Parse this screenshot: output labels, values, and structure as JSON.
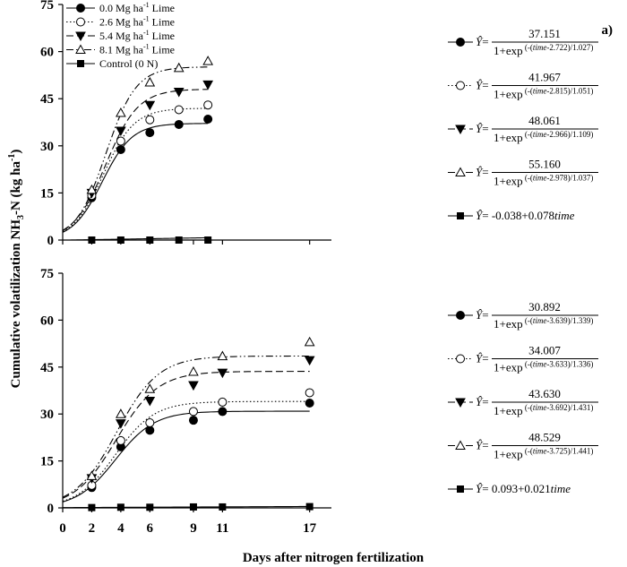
{
  "chart_data": {
    "type": "scatter",
    "xlabel": "Days after nitrogen fertilization",
    "ylabel_main": "Cumulative volatilization NH",
    "ylabel_sub": "3",
    "ylabel_tail": "-N (kg ha",
    "ylabel_sup": "-1",
    "ylabel_end": ")",
    "x_ticks": [
      "0",
      "2",
      "4",
      "6",
      "9",
      "11",
      "17"
    ],
    "x_tick_values": [
      0,
      2,
      4,
      6,
      9,
      11,
      17
    ],
    "y_ticks": [
      "0",
      "15",
      "30",
      "45",
      "60",
      "75"
    ],
    "y_tick_values": [
      0,
      15,
      30,
      45,
      60,
      75
    ],
    "xlim": [
      0,
      18.5
    ],
    "ylim": [
      0,
      75
    ],
    "legend": {
      "placement": "top-left",
      "entries": [
        {
          "text_main": "0.0 Mg ha",
          "text_sup": "-1",
          "text_tail": " Lime",
          "marker": "filled-circle",
          "line": "solid"
        },
        {
          "text_main": "2.6 Mg ha",
          "text_sup": "-1",
          "text_tail": " Lime",
          "marker": "open-circle",
          "line": "dotted"
        },
        {
          "text_main": "5.4 Mg ha",
          "text_sup": "-1",
          "text_tail": " Lime",
          "marker": "filled-triangle-down",
          "line": "dashed"
        },
        {
          "text_main": "8.1 Mg ha",
          "text_sup": "-1",
          "text_tail": " Lime",
          "marker": "open-triangle-up",
          "line": "dash-dot-dot"
        },
        {
          "text_main": "Control (0 N)",
          "text_sup": "",
          "text_tail": "",
          "marker": "filled-square",
          "line": "solid"
        }
      ]
    },
    "panels": [
      {
        "label": "a)",
        "series": [
          {
            "points": [
              [
                2,
                13.5
              ],
              [
                4,
                28.8
              ],
              [
                6,
                34.2
              ],
              [
                8,
                36.8
              ],
              [
                10,
                38.5
              ]
            ],
            "model": {
              "kind": "logistic",
              "a": 37.151,
              "b": 2.722,
              "c": 1.027
            },
            "equation": {
              "yhat": "Ŷ",
              "num": "37.151",
              "den_base": "1+exp",
              "den_exp_open": "(-(",
              "den_exp_var": "time",
              "den_exp_close": "-2.722)/1.027)"
            }
          },
          {
            "points": [
              [
                2,
                14.2
              ],
              [
                4,
                31.5
              ],
              [
                6,
                38.3
              ],
              [
                8,
                41.5
              ],
              [
                10,
                43.0
              ]
            ],
            "model": {
              "kind": "logistic",
              "a": 41.967,
              "b": 2.815,
              "c": 1.051
            },
            "equation": {
              "yhat": "Ŷ",
              "num": "41.967",
              "den_base": "1+exp",
              "den_exp_open": "(-(",
              "den_exp_var": "time",
              "den_exp_close": "-2.815)/1.051)"
            }
          },
          {
            "points": [
              [
                2,
                15.0
              ],
              [
                4,
                34.8
              ],
              [
                6,
                43.0
              ],
              [
                8,
                47.2
              ],
              [
                10,
                49.5
              ]
            ],
            "model": {
              "kind": "logistic",
              "a": 48.061,
              "b": 2.966,
              "c": 1.109
            },
            "equation": {
              "yhat": "Ŷ",
              "num": "48.061",
              "den_base": "1+exp",
              "den_exp_open": "(-(",
              "den_exp_var": "time",
              "den_exp_close": "-2.966)/1.109)"
            }
          },
          {
            "points": [
              [
                2,
                16.0
              ],
              [
                4,
                40.5
              ],
              [
                6,
                50.2
              ],
              [
                8,
                54.8
              ],
              [
                10,
                57.0
              ]
            ],
            "model": {
              "kind": "logistic",
              "a": 55.16,
              "b": 2.978,
              "c": 1.037
            },
            "equation": {
              "yhat": "Ŷ",
              "num": "55.160",
              "den_base": "1+exp",
              "den_exp_open": "(-(",
              "den_exp_var": "time",
              "den_exp_close": "-2.978)/1.037)"
            }
          },
          {
            "points": [
              [
                2,
                0.0
              ],
              [
                4,
                0.0
              ],
              [
                6,
                0.0
              ],
              [
                8,
                0.0
              ],
              [
                10,
                0.0
              ]
            ],
            "model": {
              "kind": "linear",
              "a": -0.038,
              "b": 0.078
            },
            "equation": {
              "yhat": "Ŷ",
              "linear_text": "= -0.038+0.078",
              "linear_var": "time"
            }
          }
        ]
      },
      {
        "label": "",
        "series": [
          {
            "points": [
              [
                2,
                6.5
              ],
              [
                4,
                19.5
              ],
              [
                6,
                24.8
              ],
              [
                9,
                28.0
              ],
              [
                11,
                30.8
              ],
              [
                17,
                33.5
              ]
            ],
            "model": {
              "kind": "logistic",
              "a": 30.892,
              "b": 3.639,
              "c": 1.339
            },
            "equation": {
              "yhat": "Ŷ",
              "num": "30.892",
              "den_base": "1+exp",
              "den_exp_open": "(-(",
              "den_exp_var": "time",
              "den_exp_close": "-3.639)/1.339)"
            }
          },
          {
            "points": [
              [
                2,
                7.2
              ],
              [
                4,
                21.5
              ],
              [
                6,
                27.2
              ],
              [
                9,
                30.8
              ],
              [
                11,
                33.8
              ],
              [
                17,
                36.8
              ]
            ],
            "model": {
              "kind": "logistic",
              "a": 34.007,
              "b": 3.633,
              "c": 1.336
            },
            "equation": {
              "yhat": "Ŷ",
              "num": "34.007",
              "den_base": "1+exp",
              "den_exp_open": "(-(",
              "den_exp_var": "time",
              "den_exp_close": "-3.633)/1.336)"
            }
          },
          {
            "points": [
              [
                2,
                9.5
              ],
              [
                4,
                27.0
              ],
              [
                6,
                34.2
              ],
              [
                9,
                39.2
              ],
              [
                11,
                43.2
              ],
              [
                17,
                47.2
              ]
            ],
            "model": {
              "kind": "logistic",
              "a": 43.63,
              "b": 3.692,
              "c": 1.431
            },
            "equation": {
              "yhat": "Ŷ",
              "num": "43.630",
              "den_base": "1+exp",
              "den_exp_open": "(-(",
              "den_exp_var": "time",
              "den_exp_close": "-3.692)/1.431)"
            }
          },
          {
            "points": [
              [
                2,
                10.2
              ],
              [
                4,
                30.0
              ],
              [
                6,
                38.0
              ],
              [
                9,
                43.5
              ],
              [
                11,
                48.5
              ],
              [
                17,
                53.0
              ]
            ],
            "model": {
              "kind": "logistic",
              "a": 48.529,
              "b": 3.725,
              "c": 1.441
            },
            "equation": {
              "yhat": "Ŷ",
              "num": "48.529",
              "den_base": "1+exp",
              "den_exp_open": "(-(",
              "den_exp_var": "time",
              "den_exp_close": "-3.725)/1.441)"
            }
          },
          {
            "points": [
              [
                2,
                0.1
              ],
              [
                4,
                0.2
              ],
              [
                6,
                0.2
              ],
              [
                9,
                0.3
              ],
              [
                11,
                0.3
              ],
              [
                17,
                0.4
              ]
            ],
            "model": {
              "kind": "linear",
              "a": 0.093,
              "b": 0.021
            },
            "equation": {
              "yhat": "Ŷ",
              "linear_text": "= 0.093+0.021",
              "linear_var": "time"
            }
          }
        ]
      }
    ]
  }
}
